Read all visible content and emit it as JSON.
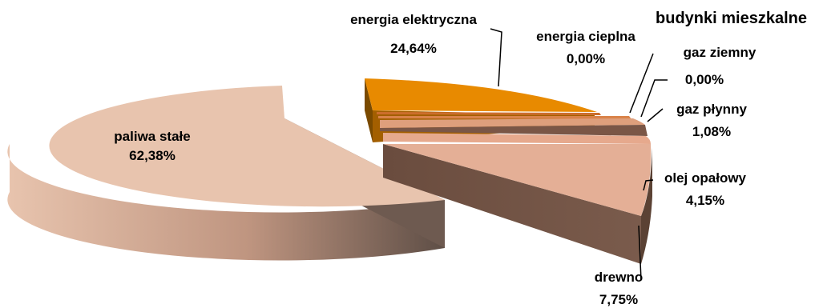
{
  "chart_data": {
    "type": "pie",
    "title": "budynki mieszkalne",
    "slices": [
      {
        "label": "paliwa stałe",
        "value": 62.38,
        "value_label": "62,38%",
        "color": "#E8C4AE",
        "shade": "#5E463A"
      },
      {
        "label": "energia elektryczna",
        "value": 24.64,
        "value_label": "24,64%",
        "color": "#E88A00",
        "shade": "#7A4A00"
      },
      {
        "label": "energia cieplna",
        "value": 0.0,
        "value_label": "0,00%",
        "color": "#CC6E2C",
        "shade": "#6E3A14"
      },
      {
        "label": "gaz ziemny",
        "value": 0.0,
        "value_label": "0,00%",
        "color": "#D9834A",
        "shade": "#744222"
      },
      {
        "label": "gaz płynny",
        "value": 1.08,
        "value_label": "1,08%",
        "color": "#DE9F7C",
        "shade": "#6A4A3A"
      },
      {
        "label": "olej opałowy",
        "value": 4.15,
        "value_label": "4,15%",
        "color": "#E6A98D",
        "shade": "#6E5244"
      },
      {
        "label": "drewno",
        "value": 7.75,
        "value_label": "7,75%",
        "color": "#E4AF96",
        "shade": "#6B5144"
      }
    ],
    "style": "3d-exploded"
  }
}
